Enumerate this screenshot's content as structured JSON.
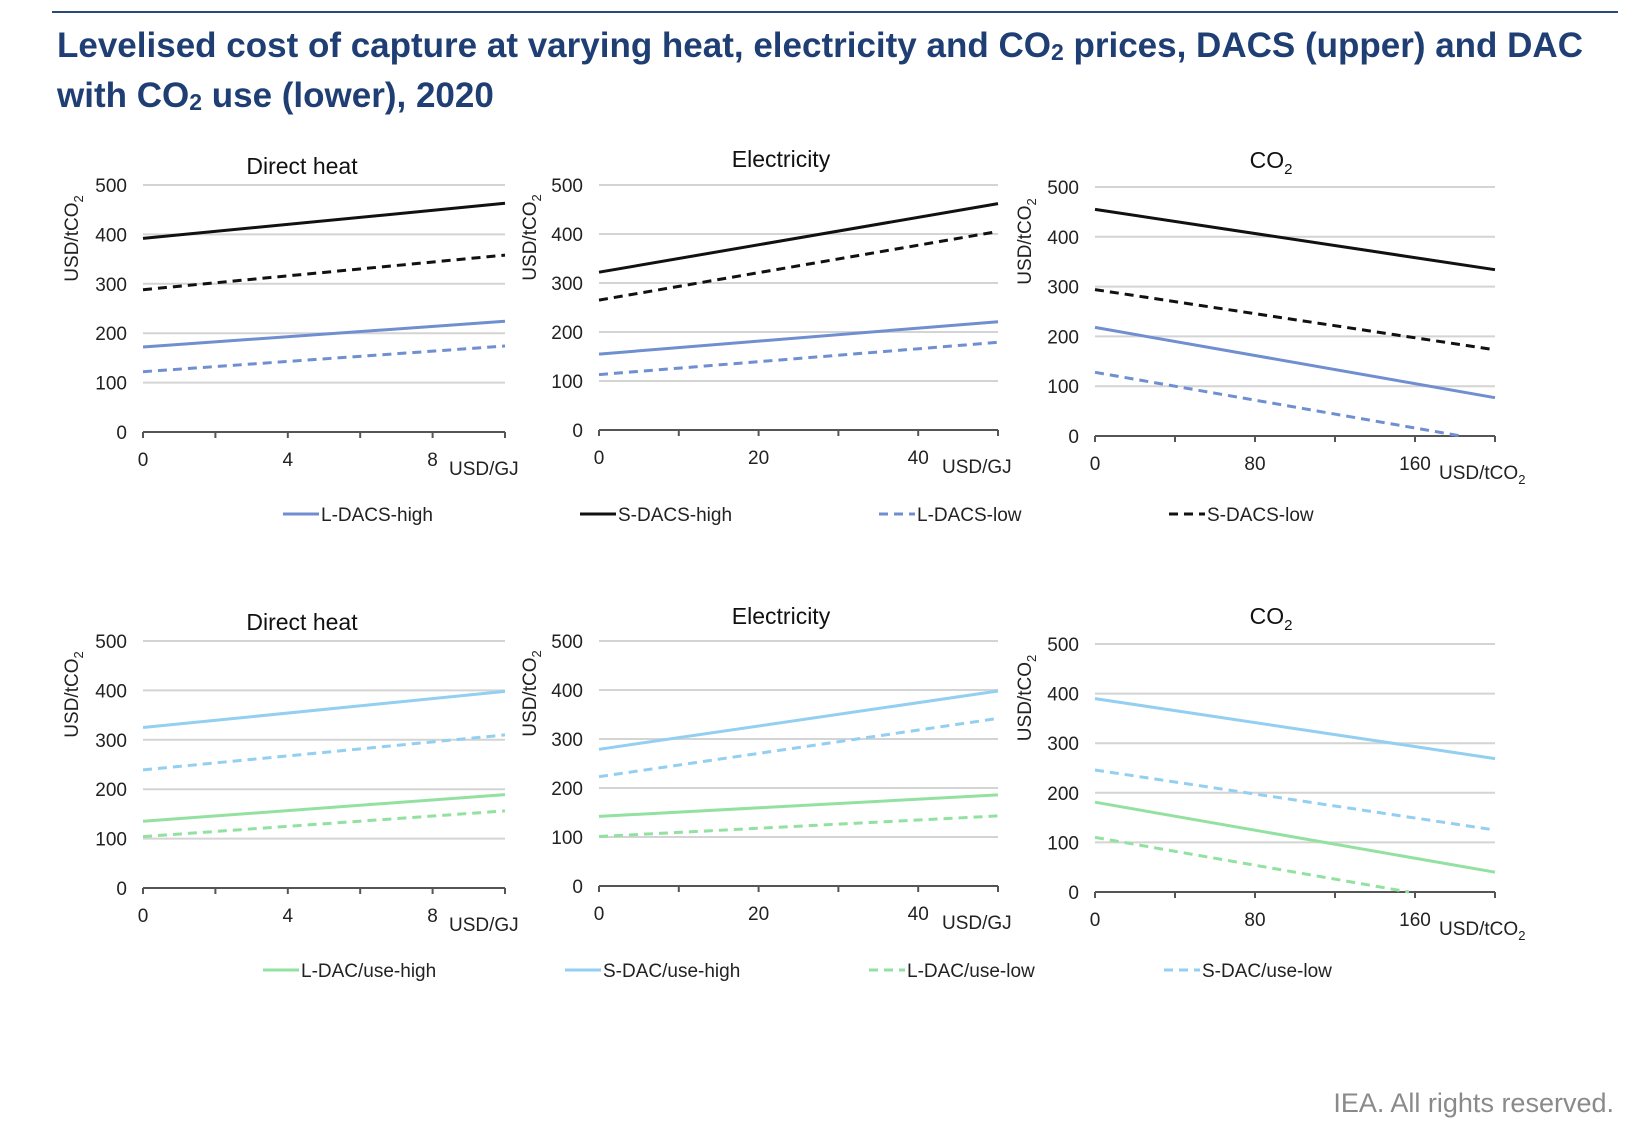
{
  "header": {
    "title_part1": "Levelised cost of capture at varying heat, electricity and CO",
    "title_sub1": "2",
    "title_part2": " prices, DACS (upper) and DAC with CO",
    "title_sub2": "2",
    "title_part3": " use (lower), 2020"
  },
  "footer": {
    "credit": "IEA. All rights reserved."
  },
  "colors": {
    "l_dacs": "#6f8fd0",
    "s_dacs": "#111111",
    "l_dac_use": "#93e1a0",
    "s_dac_use": "#93cff0",
    "grid": "#d4d4d4",
    "axis": "#555555"
  },
  "chart_data": [
    {
      "type": "line",
      "panel": "upper",
      "title": "Direct heat",
      "title_sub": "",
      "ylabel": "USD/tCO2",
      "xunit": "USD/GJ",
      "xlim": [
        0,
        10
      ],
      "xticks": [
        0,
        4,
        8
      ],
      "ylim": [
        0,
        500
      ],
      "yticks": [
        0,
        100,
        200,
        300,
        400,
        500
      ],
      "grid": true,
      "series": [
        {
          "name": "L-DACS-high",
          "x": [
            0,
            10
          ],
          "y": [
            172,
            224
          ],
          "color": "l_dacs",
          "dash": false
        },
        {
          "name": "S-DACS-high",
          "x": [
            0,
            10
          ],
          "y": [
            392,
            463
          ],
          "color": "s_dacs",
          "dash": false
        },
        {
          "name": "L-DACS-low",
          "x": [
            0,
            10
          ],
          "y": [
            122,
            174
          ],
          "color": "l_dacs",
          "dash": true
        },
        {
          "name": "S-DACS-low",
          "x": [
            0,
            10
          ],
          "y": [
            288,
            358
          ],
          "color": "s_dacs",
          "dash": true
        }
      ]
    },
    {
      "type": "line",
      "panel": "upper",
      "title": "Electricity",
      "title_sub": "",
      "ylabel": "USD/tCO2",
      "xunit": "USD/GJ",
      "xlim": [
        0,
        50
      ],
      "xticks": [
        0,
        20,
        40
      ],
      "ylim": [
        0,
        500
      ],
      "yticks": [
        0,
        100,
        200,
        300,
        400,
        500
      ],
      "grid": true,
      "series": [
        {
          "name": "L-DACS-high",
          "x": [
            0,
            50
          ],
          "y": [
            155,
            221
          ],
          "color": "l_dacs",
          "dash": false
        },
        {
          "name": "S-DACS-high",
          "x": [
            0,
            50
          ],
          "y": [
            322,
            462
          ],
          "color": "s_dacs",
          "dash": false
        },
        {
          "name": "L-DACS-low",
          "x": [
            0,
            50
          ],
          "y": [
            113,
            179
          ],
          "color": "l_dacs",
          "dash": true
        },
        {
          "name": "S-DACS-low",
          "x": [
            0,
            50
          ],
          "y": [
            265,
            405
          ],
          "color": "s_dacs",
          "dash": true
        }
      ]
    },
    {
      "type": "line",
      "panel": "upper",
      "title": "CO",
      "title_sub": "2",
      "ylabel": "USD/tCO2",
      "xunit": "USD/tCO2",
      "xlim": [
        0,
        200
      ],
      "xticks": [
        0,
        80,
        160
      ],
      "ylim": [
        0,
        500
      ],
      "yticks": [
        0,
        100,
        200,
        300,
        400,
        500
      ],
      "grid": true,
      "series": [
        {
          "name": "L-DACS-high",
          "x": [
            0,
            200
          ],
          "y": [
            218,
            77
          ],
          "color": "l_dacs",
          "dash": false
        },
        {
          "name": "S-DACS-high",
          "x": [
            0,
            200
          ],
          "y": [
            455,
            334
          ],
          "color": "s_dacs",
          "dash": false
        },
        {
          "name": "L-DACS-low",
          "x": [
            0,
            183
          ],
          "y": [
            128,
            0
          ],
          "color": "l_dacs",
          "dash": true
        },
        {
          "name": "S-DACS-low",
          "x": [
            0,
            200
          ],
          "y": [
            294,
            173
          ],
          "color": "s_dacs",
          "dash": true
        }
      ]
    },
    {
      "type": "line",
      "panel": "lower",
      "title": "Direct heat",
      "title_sub": "",
      "ylabel": "USD/tCO2",
      "xunit": "USD/GJ",
      "xlim": [
        0,
        10
      ],
      "xticks": [
        0,
        4,
        8
      ],
      "ylim": [
        0,
        500
      ],
      "yticks": [
        0,
        100,
        200,
        300,
        400,
        500
      ],
      "grid": true,
      "series": [
        {
          "name": "L-DAC/use-high",
          "x": [
            0,
            10
          ],
          "y": [
            135,
            189
          ],
          "color": "l_dac_use",
          "dash": false
        },
        {
          "name": "S-DAC/use-high",
          "x": [
            0,
            10
          ],
          "y": [
            325,
            398
          ],
          "color": "s_dac_use",
          "dash": false
        },
        {
          "name": "L-DAC/use-low",
          "x": [
            0,
            10
          ],
          "y": [
            104,
            156
          ],
          "color": "l_dac_use",
          "dash": true
        },
        {
          "name": "S-DAC/use-low",
          "x": [
            0,
            10
          ],
          "y": [
            239,
            310
          ],
          "color": "s_dac_use",
          "dash": true
        }
      ]
    },
    {
      "type": "line",
      "panel": "lower",
      "title": "Electricity",
      "title_sub": "",
      "ylabel": "USD/tCO2",
      "xunit": "USD/GJ",
      "xlim": [
        0,
        50
      ],
      "xticks": [
        0,
        20,
        40
      ],
      "ylim": [
        0,
        500
      ],
      "yticks": [
        0,
        100,
        200,
        300,
        400,
        500
      ],
      "grid": true,
      "series": [
        {
          "name": "L-DAC/use-high",
          "x": [
            0,
            50
          ],
          "y": [
            142,
            186
          ],
          "color": "l_dac_use",
          "dash": false
        },
        {
          "name": "S-DAC/use-high",
          "x": [
            0,
            50
          ],
          "y": [
            279,
            398
          ],
          "color": "s_dac_use",
          "dash": false
        },
        {
          "name": "L-DAC/use-low",
          "x": [
            0,
            50
          ],
          "y": [
            101,
            143
          ],
          "color": "l_dac_use",
          "dash": true
        },
        {
          "name": "S-DAC/use-low",
          "x": [
            0,
            50
          ],
          "y": [
            223,
            342
          ],
          "color": "s_dac_use",
          "dash": true
        }
      ]
    },
    {
      "type": "line",
      "panel": "lower",
      "title": "CO",
      "title_sub": "2",
      "ylabel": "USD/tCO2",
      "xunit": "USD/tCO2",
      "xlim": [
        0,
        200
      ],
      "xticks": [
        0,
        80,
        160
      ],
      "ylim": [
        0,
        500
      ],
      "yticks": [
        0,
        100,
        200,
        300,
        400,
        500
      ],
      "grid": true,
      "series": [
        {
          "name": "L-DAC/use-high",
          "x": [
            0,
            200
          ],
          "y": [
            181,
            40
          ],
          "color": "l_dac_use",
          "dash": false
        },
        {
          "name": "S-DAC/use-high",
          "x": [
            0,
            200
          ],
          "y": [
            390,
            269
          ],
          "color": "s_dac_use",
          "dash": false
        },
        {
          "name": "L-DAC/use-low",
          "x": [
            0,
            157
          ],
          "y": [
            110,
            0
          ],
          "color": "l_dac_use",
          "dash": true
        },
        {
          "name": "S-DAC/use-low",
          "x": [
            0,
            200
          ],
          "y": [
            246,
            125
          ],
          "color": "s_dac_use",
          "dash": true
        }
      ]
    }
  ],
  "legends": [
    {
      "panel": "upper",
      "items": [
        {
          "label": "L-DACS-high",
          "color": "l_dacs",
          "dash": false
        },
        {
          "label": "S-DACS-high",
          "color": "s_dacs",
          "dash": false
        },
        {
          "label": "L-DACS-low",
          "color": "l_dacs",
          "dash": true
        },
        {
          "label": "S-DACS-low",
          "color": "s_dacs",
          "dash": true
        }
      ]
    },
    {
      "panel": "lower",
      "items": [
        {
          "label": "L-DAC/use-high",
          "color": "l_dac_use",
          "dash": false
        },
        {
          "label": "S-DAC/use-high",
          "color": "s_dac_use",
          "dash": false
        },
        {
          "label": "L-DAC/use-low",
          "color": "l_dac_use",
          "dash": true
        },
        {
          "label": "S-DAC/use-low",
          "color": "s_dac_use",
          "dash": true
        }
      ]
    }
  ]
}
